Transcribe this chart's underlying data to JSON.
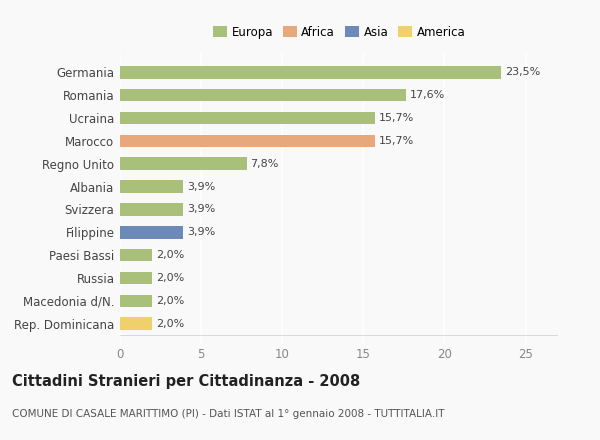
{
  "categories": [
    "Germania",
    "Romania",
    "Ucraina",
    "Marocco",
    "Regno Unito",
    "Albania",
    "Svizzera",
    "Filippine",
    "Paesi Bassi",
    "Russia",
    "Macedonia d/N.",
    "Rep. Dominicana"
  ],
  "values": [
    23.5,
    17.6,
    15.7,
    15.7,
    7.8,
    3.9,
    3.9,
    3.9,
    2.0,
    2.0,
    2.0,
    2.0
  ],
  "labels": [
    "23,5%",
    "17,6%",
    "15,7%",
    "15,7%",
    "7,8%",
    "3,9%",
    "3,9%",
    "3,9%",
    "2,0%",
    "2,0%",
    "2,0%",
    "2,0%"
  ],
  "bar_colors": [
    "#a8c07a",
    "#a8c07a",
    "#a8c07a",
    "#e8a87c",
    "#a8c07a",
    "#a8c07a",
    "#a8c07a",
    "#6b8ab8",
    "#a8c07a",
    "#a8c07a",
    "#a8c07a",
    "#f0d06a"
  ],
  "legend_labels": [
    "Europa",
    "Africa",
    "Asia",
    "America"
  ],
  "legend_colors": [
    "#a8c07a",
    "#e8a87c",
    "#6b8ab8",
    "#f0d06a"
  ],
  "xlim": [
    0,
    27
  ],
  "xticks": [
    0,
    5,
    10,
    15,
    20,
    25
  ],
  "title": "Cittadini Stranieri per Cittadinanza - 2008",
  "subtitle": "COMUNE DI CASALE MARITTIMO (PI) - Dati ISTAT al 1° gennaio 2008 - TUTTITALIA.IT",
  "background_color": "#f9f9f9",
  "grid_color": "#ffffff",
  "label_fontsize": 8.0,
  "ytick_fontsize": 8.5,
  "xtick_fontsize": 8.5,
  "legend_fontsize": 8.5,
  "title_fontsize": 10.5,
  "subtitle_fontsize": 7.5
}
